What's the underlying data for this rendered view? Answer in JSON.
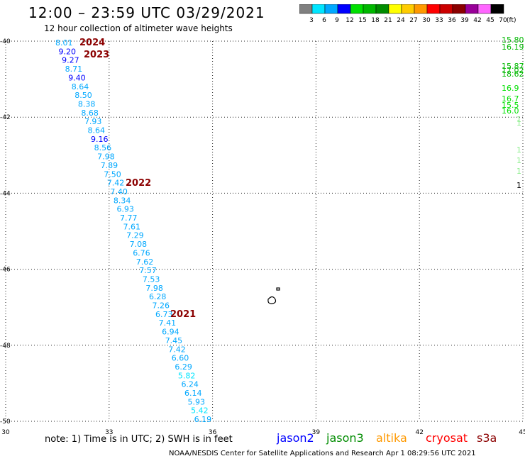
{
  "header": {
    "title": "12:00 – 23:59 UTC 03/29/2021",
    "subtitle": "12 hour collection of altimeter wave heights"
  },
  "legend": {
    "labels": [
      "3",
      "6",
      "9",
      "12",
      "15",
      "18",
      "21",
      "24",
      "27",
      "30",
      "33",
      "36",
      "39",
      "42",
      "45",
      "70"
    ],
    "unit": "(ft)",
    "colors": [
      "#808080",
      "#00e5ff",
      "#00a8ff",
      "#0000ff",
      "#00e000",
      "#00b800",
      "#008c00",
      "#ffff00",
      "#ffcc00",
      "#ff9900",
      "#ff0000",
      "#cc0000",
      "#8b0000",
      "#990099",
      "#ff66ff",
      "#000000"
    ]
  },
  "map": {
    "lat_labels": [
      "-40",
      "-42",
      "-44",
      "-46",
      "-48",
      "-50"
    ],
    "lon_labels": [
      "30",
      "33",
      "36",
      "39",
      "42",
      "45"
    ],
    "track_values": [
      "8.01",
      "9.20",
      "9.27",
      "8.71",
      "9.40",
      "8.64",
      "8.50",
      "8.38",
      "8.68",
      "7.93",
      "8.64",
      "9.16",
      "8.56",
      "7.98",
      "7.89",
      "7.50",
      "7.42",
      "7.40",
      "8.34",
      "6.93",
      "7.77",
      "7.61",
      "7.29",
      "7.08",
      "6.76",
      "7.62",
      "7.57",
      "7.53",
      "7.98",
      "6.28",
      "7.26",
      "6.73",
      "7.41",
      "6.94",
      "7.45",
      "7.42",
      "6.60",
      "6.29",
      "5.82",
      "6.24",
      "6.14",
      "5.93",
      "5.42",
      "6.19"
    ],
    "track_colors": [
      "#00a8ff",
      "#0000ff",
      "#0000ff",
      "#00a8ff",
      "#0000ff",
      "#00a8ff",
      "#00a8ff",
      "#00a8ff",
      "#00a8ff",
      "#00a8ff",
      "#00a8ff",
      "#0000ff",
      "#00a8ff",
      "#00a8ff",
      "#00a8ff",
      "#00a8ff",
      "#00a8ff",
      "#00a8ff",
      "#00a8ff",
      "#00a8ff",
      "#00a8ff",
      "#00a8ff",
      "#00a8ff",
      "#00a8ff",
      "#00a8ff",
      "#00a8ff",
      "#00a8ff",
      "#00a8ff",
      "#00a8ff",
      "#00a8ff",
      "#00a8ff",
      "#00a8ff",
      "#00a8ff",
      "#00a8ff",
      "#00a8ff",
      "#00a8ff",
      "#00a8ff",
      "#00a8ff",
      "#00e5ff",
      "#00a8ff",
      "#00a8ff",
      "#00a8ff",
      "#00e5ff",
      "#00a8ff"
    ],
    "time_labels": [
      "2024",
      "2023",
      "2022",
      "2021"
    ],
    "edge_values": [
      "15.80",
      "16.19",
      "15.87",
      "17.02",
      "18.62",
      "16.9",
      "16.7",
      "15.5",
      "16.0"
    ],
    "edge_colors": [
      "#00b800",
      "#00b800",
      "#00b800",
      "#00b800",
      "#00b800",
      "#00e000",
      "#00e000",
      "#00e000",
      "#00e000"
    ],
    "faint_marks": [
      "1",
      "1",
      "1",
      "1",
      "1",
      "1"
    ]
  },
  "footer": {
    "note": "note: 1) Time is in UTC; 2) SWH is in feet",
    "missions": [
      {
        "name": "jason2",
        "color": "#0000ff"
      },
      {
        "name": "jason3",
        "color": "#008c00"
      },
      {
        "name": "altika",
        "color": "#ff9900"
      },
      {
        "name": "cryosat",
        "color": "#ff0000"
      },
      {
        "name": "s3a",
        "color": "#8b0000"
      }
    ],
    "credit": "NOAA/NESDIS Center for Satellite Applications and Research    Apr  1 08:29:56 UTC 2021"
  }
}
